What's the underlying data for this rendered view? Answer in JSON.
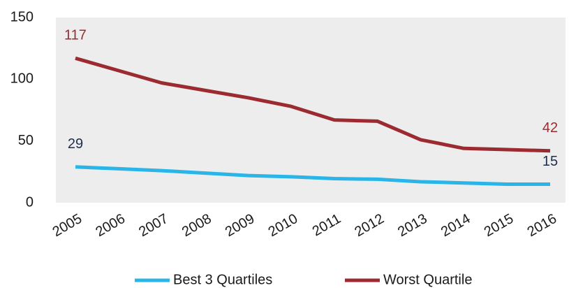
{
  "chart_data": {
    "type": "line",
    "categories": [
      "2005",
      "2006",
      "2007",
      "2008",
      "2009",
      "2010",
      "2011",
      "2012",
      "2013",
      "2014",
      "2015",
      "2016"
    ],
    "series": [
      {
        "name": "Best 3 Quartiles",
        "color": "#29b5e8",
        "values": [
          29,
          27.5,
          26,
          24,
          22,
          21,
          19.5,
          19,
          17,
          16,
          15,
          15
        ]
      },
      {
        "name": "Worst Quartile",
        "color": "#9b2b30",
        "values": [
          117,
          107,
          97,
          91,
          85,
          78,
          67,
          66,
          51,
          44,
          43,
          42
        ]
      }
    ],
    "ylim": [
      0,
      150
    ],
    "yticks": [
      0,
      50,
      100,
      150
    ],
    "grid": false,
    "legend": "bottom"
  }
}
